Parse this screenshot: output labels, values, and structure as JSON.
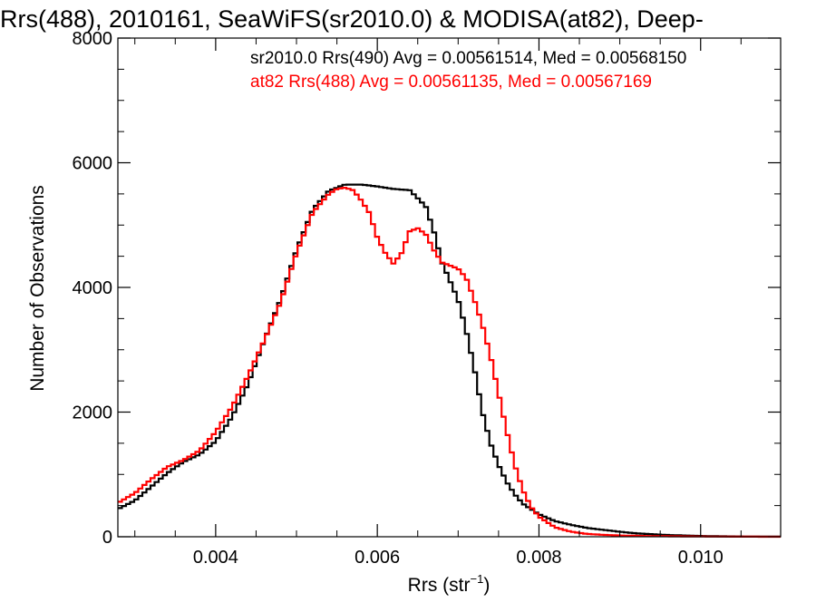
{
  "chart_data": {
    "type": "line",
    "title": "Rrs(488), 2010161, SeaWiFS(sr2010.0) & MODISA(at82), Deep-",
    "xlabel_main": "Rrs (str",
    "xlabel_sup": "−1",
    "xlabel_tail": ")",
    "ylabel": "Number of Observations",
    "xlim": [
      0.00279,
      0.01099
    ],
    "ylim": [
      0,
      8000
    ],
    "x_ticks": [
      {
        "value": 0.004,
        "label": "0.004"
      },
      {
        "value": 0.006,
        "label": "0.006"
      },
      {
        "value": 0.008,
        "label": "0.008"
      },
      {
        "value": 0.01,
        "label": "0.010"
      }
    ],
    "y_ticks": [
      {
        "value": 0,
        "label": "0"
      },
      {
        "value": 2000,
        "label": "2000"
      },
      {
        "value": 4000,
        "label": "4000"
      },
      {
        "value": 6000,
        "label": "6000"
      },
      {
        "value": 8000,
        "label": "8000"
      }
    ],
    "x_minor_step": 0.0005,
    "y_minor_step": 500,
    "step": 5.05e-05,
    "series": [
      {
        "name": "sr2010.0",
        "legend": "sr2010.0 Rrs(490) Avg = 0.00561514, Med = 0.00568150",
        "color": "#000000",
        "points": [
          [
            0.0028,
            450
          ],
          [
            0.003,
            580
          ],
          [
            0.0032,
            800
          ],
          [
            0.0034,
            1020
          ],
          [
            0.0036,
            1200
          ],
          [
            0.0038,
            1320
          ],
          [
            0.004,
            1530
          ],
          [
            0.0042,
            1920
          ],
          [
            0.0044,
            2450
          ],
          [
            0.0046,
            3150
          ],
          [
            0.0048,
            3800
          ],
          [
            0.005,
            4600
          ],
          [
            0.0052,
            5250
          ],
          [
            0.0054,
            5550
          ],
          [
            0.0056,
            5650
          ],
          [
            0.0058,
            5650
          ],
          [
            0.006,
            5620
          ],
          [
            0.0062,
            5580
          ],
          [
            0.0064,
            5560
          ],
          [
            0.0066,
            5300
          ],
          [
            0.0067,
            4900
          ],
          [
            0.0068,
            4400
          ],
          [
            0.0069,
            4100
          ],
          [
            0.007,
            3800
          ],
          [
            0.0071,
            3300
          ],
          [
            0.0072,
            2700
          ],
          [
            0.0073,
            2000
          ],
          [
            0.0074,
            1500
          ],
          [
            0.0075,
            1150
          ],
          [
            0.0076,
            880
          ],
          [
            0.0077,
            680
          ],
          [
            0.0078,
            530
          ],
          [
            0.008,
            360
          ],
          [
            0.0082,
            250
          ],
          [
            0.0084,
            190
          ],
          [
            0.0086,
            140
          ],
          [
            0.0088,
            110
          ],
          [
            0.009,
            80
          ],
          [
            0.0092,
            55
          ],
          [
            0.0094,
            40
          ],
          [
            0.0096,
            28
          ],
          [
            0.0098,
            20
          ],
          [
            0.01,
            12
          ],
          [
            0.0102,
            8
          ],
          [
            0.0104,
            5
          ],
          [
            0.0106,
            3
          ],
          [
            0.0108,
            2
          ],
          [
            0.011,
            1
          ]
        ]
      },
      {
        "name": "at82",
        "legend": "at82 Rrs(488) Avg = 0.00561135, Med = 0.00567169",
        "color": "#ff0000",
        "points": [
          [
            0.0028,
            550
          ],
          [
            0.003,
            700
          ],
          [
            0.0032,
            920
          ],
          [
            0.0034,
            1120
          ],
          [
            0.0036,
            1230
          ],
          [
            0.0038,
            1380
          ],
          [
            0.004,
            1680
          ],
          [
            0.0042,
            2080
          ],
          [
            0.0044,
            2580
          ],
          [
            0.0046,
            3150
          ],
          [
            0.0048,
            3750
          ],
          [
            0.005,
            4550
          ],
          [
            0.0052,
            5200
          ],
          [
            0.0054,
            5500
          ],
          [
            0.0055,
            5580
          ],
          [
            0.0056,
            5600
          ],
          [
            0.0057,
            5560
          ],
          [
            0.0058,
            5400
          ],
          [
            0.0059,
            5200
          ],
          [
            0.006,
            4800
          ],
          [
            0.0061,
            4550
          ],
          [
            0.0062,
            4380
          ],
          [
            0.0063,
            4550
          ],
          [
            0.0064,
            4900
          ],
          [
            0.0065,
            4950
          ],
          [
            0.0066,
            4850
          ],
          [
            0.0067,
            4600
          ],
          [
            0.0068,
            4400
          ],
          [
            0.0069,
            4350
          ],
          [
            0.007,
            4300
          ],
          [
            0.0071,
            4150
          ],
          [
            0.0072,
            3800
          ],
          [
            0.0073,
            3400
          ],
          [
            0.0074,
            2900
          ],
          [
            0.0075,
            2300
          ],
          [
            0.0076,
            1700
          ],
          [
            0.0077,
            1150
          ],
          [
            0.0078,
            750
          ],
          [
            0.0079,
            480
          ],
          [
            0.008,
            320
          ],
          [
            0.0082,
            150
          ],
          [
            0.0084,
            80
          ],
          [
            0.0086,
            45
          ],
          [
            0.0088,
            30
          ],
          [
            0.009,
            20
          ],
          [
            0.0092,
            15
          ],
          [
            0.0094,
            10
          ],
          [
            0.0096,
            8
          ],
          [
            0.0098,
            6
          ],
          [
            0.01,
            4
          ],
          [
            0.0102,
            3
          ],
          [
            0.0104,
            2
          ],
          [
            0.0106,
            1
          ],
          [
            0.011,
            0
          ]
        ]
      }
    ],
    "grid": false,
    "legend_position": "top-right"
  }
}
